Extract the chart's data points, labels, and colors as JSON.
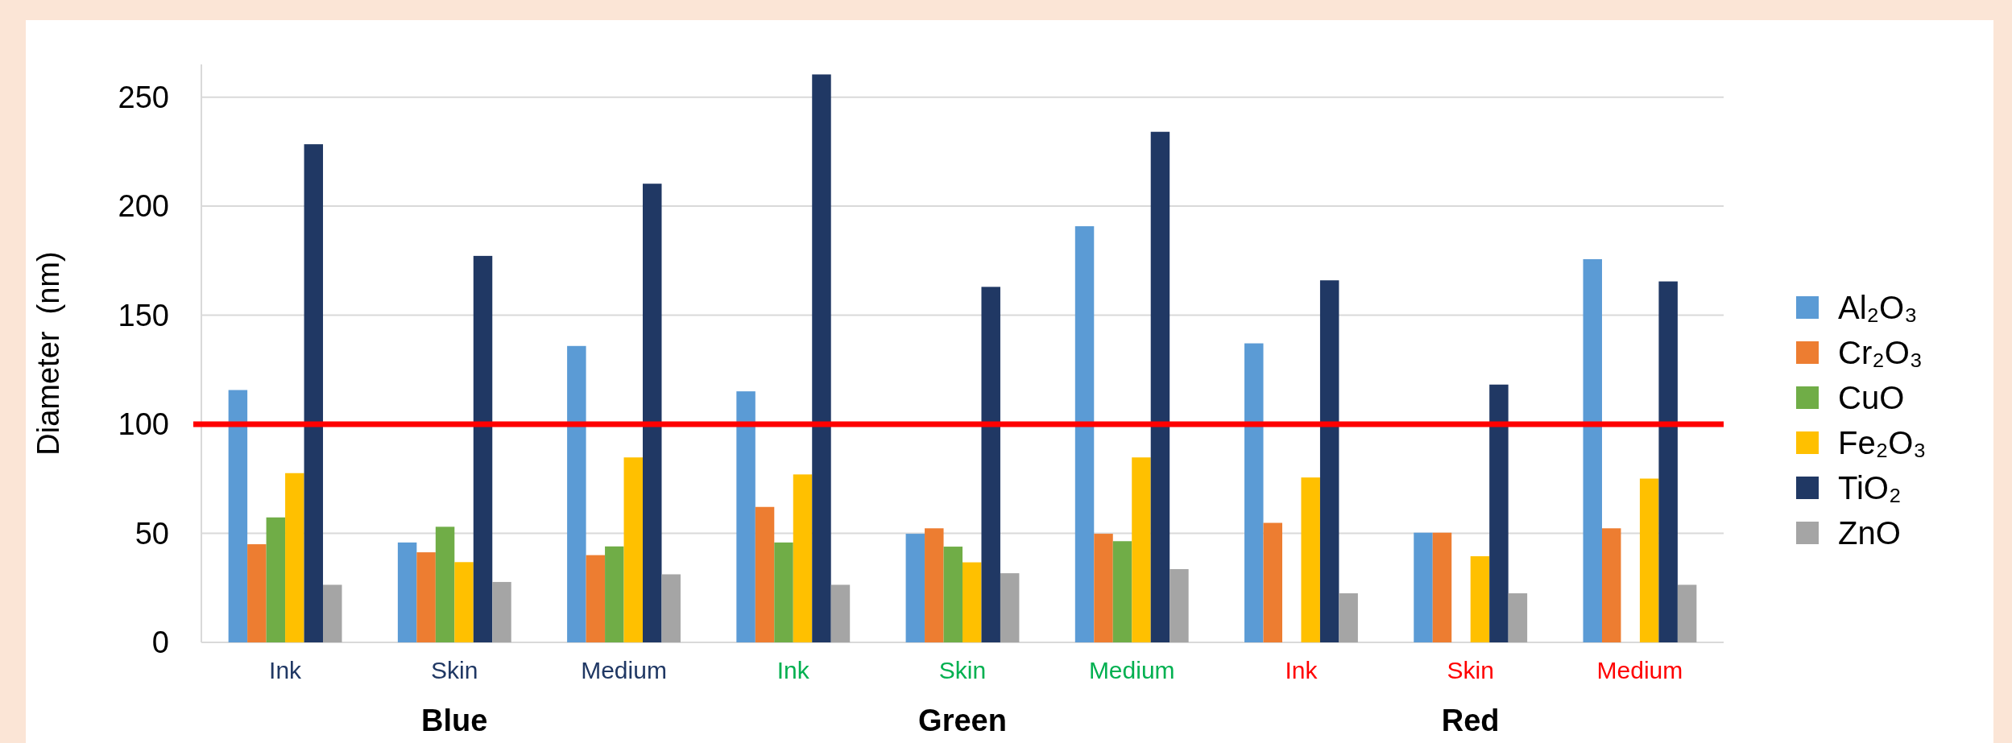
{
  "chart_data": {
    "type": "bar",
    "ylabel": "Diameter  (nm)",
    "categories": [
      "Ink",
      "Skin",
      "Medium",
      "Ink",
      "Skin",
      "Medium",
      "Ink",
      "Skin",
      "Medium"
    ],
    "series": [
      {
        "name": "Al₂O₃",
        "color": "#5b9bd5",
        "values": [
          115.7,
          45.8,
          135.9,
          115.1,
          49.8,
          190.8,
          137.1,
          50.3,
          175.7
        ]
      },
      {
        "name": "Cr₂O₃",
        "color": "#ed7d31",
        "values": [
          45,
          41.3,
          40,
          62.1,
          52.3,
          49.8,
          54.8,
          50.3,
          52.3
        ]
      },
      {
        "name": "CuO",
        "color": "#70ad47",
        "values": [
          57.3,
          53,
          44,
          45.8,
          43.9,
          46.4,
          null,
          null,
          null
        ]
      },
      {
        "name": "Fe₂O₃",
        "color": "#ffc000",
        "values": [
          77.6,
          36.8,
          84.8,
          77,
          36.7,
          84.8,
          75.6,
          39.5,
          75.1
        ]
      },
      {
        "name": "TiO₂",
        "color": "#203864",
        "values": [
          228.4,
          177.2,
          210.3,
          260.4,
          163,
          234.1,
          166,
          118.2,
          165.5
        ]
      },
      {
        "name": "ZnO",
        "color": "#a5a5a5",
        "values": [
          26.4,
          27.7,
          31.2,
          26.4,
          31.7,
          33.6,
          22.5,
          22.5,
          26.4
        ]
      }
    ],
    "ylim": [
      0,
      265
    ],
    "yticks": [
      0,
      50,
      100,
      150,
      200,
      250
    ],
    "grid": "y",
    "legend": "right",
    "ref_lines": [
      {
        "axis": "y",
        "value": 100,
        "color": "#ff0000"
      }
    ],
    "annotations": [
      "Blue",
      "Green",
      "Red"
    ]
  }
}
